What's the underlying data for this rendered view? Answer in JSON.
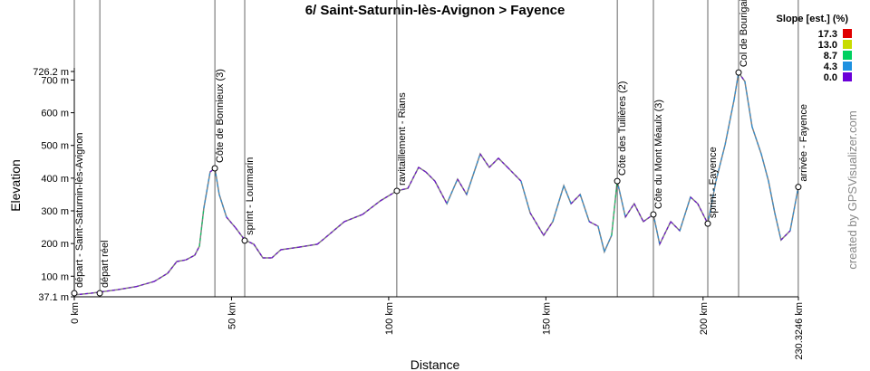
{
  "chart_data": {
    "type": "line",
    "title": "6/ Saint-Saturnin-lès-Avignon > Fayence",
    "x_label": "Distance",
    "y_label": "Elevation",
    "credit": "created by GPSVisualizer.com",
    "xlim": [
      0,
      230.3246
    ],
    "ylim": [
      37.1,
      726.2
    ],
    "xticks": [
      {
        "value": 0,
        "label": "0 km"
      },
      {
        "value": 50,
        "label": "50 km"
      },
      {
        "value": 100,
        "label": "100 km"
      },
      {
        "value": 150,
        "label": "150 km"
      },
      {
        "value": 200,
        "label": "200 km"
      },
      {
        "value": 230.3246,
        "label": "230.3246 km"
      }
    ],
    "yticks": [
      {
        "value": 37.1,
        "label": "37.1 m"
      },
      {
        "value": 100,
        "label": "100 m"
      },
      {
        "value": 200,
        "label": "200 m"
      },
      {
        "value": 300,
        "label": "300 m"
      },
      {
        "value": 400,
        "label": "400 m"
      },
      {
        "value": 500,
        "label": "500 m"
      },
      {
        "value": 600,
        "label": "600 m"
      },
      {
        "value": 700,
        "label": "700 m"
      },
      {
        "value": 726.2,
        "label": "726.2 m"
      }
    ],
    "line_color": "#808080",
    "series": [
      {
        "name": "Elevation",
        "x": [
          0,
          5.2,
          13.8,
          19.6,
          25.4,
          29.7,
          32.6,
          35.5,
          38.3,
          39.8,
          41.2,
          43.2,
          44.7,
          46.1,
          48.4,
          51.3,
          54.2,
          57.1,
          60,
          62.8,
          65.7,
          71.5,
          77.3,
          80.1,
          85.9,
          91.7,
          97.4,
          102.6,
          106.1,
          109.5,
          111.8,
          114.7,
          118.5,
          121.9,
          124.8,
          129.1,
          132,
          134.9,
          137.8,
          142.1,
          145,
          149.3,
          152.2,
          155.7,
          158,
          160.9,
          163.8,
          166.6,
          168.6,
          170.9,
          172.7,
          175.3,
          178.1,
          181,
          184.2,
          186.2,
          189.7,
          192.6,
          196,
          198.3,
          201.5,
          204.1,
          207,
          209.9,
          211.3,
          213.3,
          215.6,
          218.5,
          220.8,
          222.8,
          224.8,
          227.7,
          230.3
        ],
        "values": [
          43,
          48,
          59,
          68,
          84,
          109,
          145,
          150,
          164,
          192,
          308,
          419,
          430,
          350,
          281,
          248,
          211,
          198,
          156,
          156,
          181,
          189,
          198,
          220,
          267,
          289,
          331,
          361,
          369,
          433,
          419,
          391,
          322,
          397,
          350,
          474,
          433,
          461,
          433,
          391,
          294,
          225,
          267,
          377,
          322,
          350,
          267,
          253,
          175,
          225,
          391,
          281,
          322,
          267,
          289,
          198,
          267,
          239,
          342,
          322,
          261,
          391,
          502,
          641,
          723,
          696,
          557,
          474,
          391,
          294,
          211,
          239,
          373
        ]
      }
    ],
    "waypoints": [
      {
        "label": "départ - Saint-Saturnin-lès-Avignon",
        "x": 0,
        "y": 48
      },
      {
        "label": "départ réel",
        "x": 8.1,
        "y": 48
      },
      {
        "label": "Côte de Bonnieux (3)",
        "x": 44.7,
        "y": 430
      },
      {
        "label": "sprint - Lourmarin",
        "x": 54.2,
        "y": 209
      },
      {
        "label": "ravitaillement - Rians",
        "x": 102.6,
        "y": 361
      },
      {
        "label": "Côte des Tuilières (2)",
        "x": 172.7,
        "y": 391
      },
      {
        "label": "Côte du Mont Méaulx (3)",
        "x": 184.2,
        "y": 289
      },
      {
        "label": "sprint - Fayence",
        "x": 201.5,
        "y": 261
      },
      {
        "label": "Col de Bourigaille",
        "x": 211.3,
        "y": 723
      },
      {
        "label": "arrivée - Fayence",
        "x": 230.3,
        "y": 373
      }
    ],
    "slope_legend": {
      "title": "Slope [est.] (%)",
      "values": [
        17.3,
        13,
        8.7,
        4.3,
        0
      ],
      "value_labels": [
        "17.3",
        "13.0",
        "8.7",
        "4.3",
        "0.0"
      ],
      "colors": [
        "#e00000",
        "#c8dc00",
        "#00d060",
        "#1e90e0",
        "#6a00d8"
      ]
    }
  }
}
